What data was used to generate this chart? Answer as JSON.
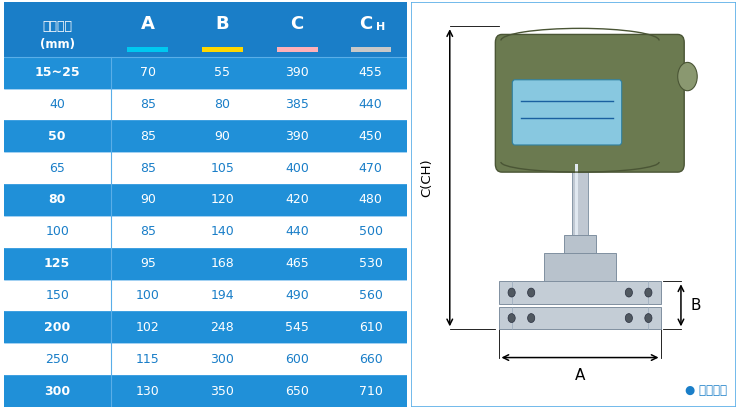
{
  "rows": [
    [
      "15~25",
      "70",
      "55",
      "390",
      "455"
    ],
    [
      "40",
      "85",
      "80",
      "385",
      "440"
    ],
    [
      "50",
      "85",
      "90",
      "390",
      "450"
    ],
    [
      "65",
      "85",
      "105",
      "400",
      "470"
    ],
    [
      "80",
      "90",
      "120",
      "420",
      "480"
    ],
    [
      "100",
      "85",
      "140",
      "440",
      "500"
    ],
    [
      "125",
      "95",
      "168",
      "465",
      "530"
    ],
    [
      "150",
      "100",
      "194",
      "490",
      "560"
    ],
    [
      "200",
      "102",
      "248",
      "545",
      "610"
    ],
    [
      "250",
      "115",
      "300",
      "600",
      "660"
    ],
    [
      "300",
      "130",
      "350",
      "650",
      "710"
    ]
  ],
  "blue_row_indices": [
    0,
    2,
    4,
    6,
    8,
    10
  ],
  "blue_header_bg": "#1A7EC8",
  "blue_row_bg": "#2090D8",
  "white_row_bg": "#FFFFFF",
  "text_white": "#FFFFFF",
  "text_blue": "#1A7EC8",
  "border_color": "#5AAEE8",
  "underline_A": "#00C8F0",
  "underline_B": "#FFD700",
  "underline_C": "#FFB0B8",
  "underline_CH": "#C8C8C8",
  "note_text": "● 常规仪表",
  "note_color": "#1A7EC8",
  "label_cch": "C(CH)",
  "label_a": "A",
  "label_b": "B"
}
